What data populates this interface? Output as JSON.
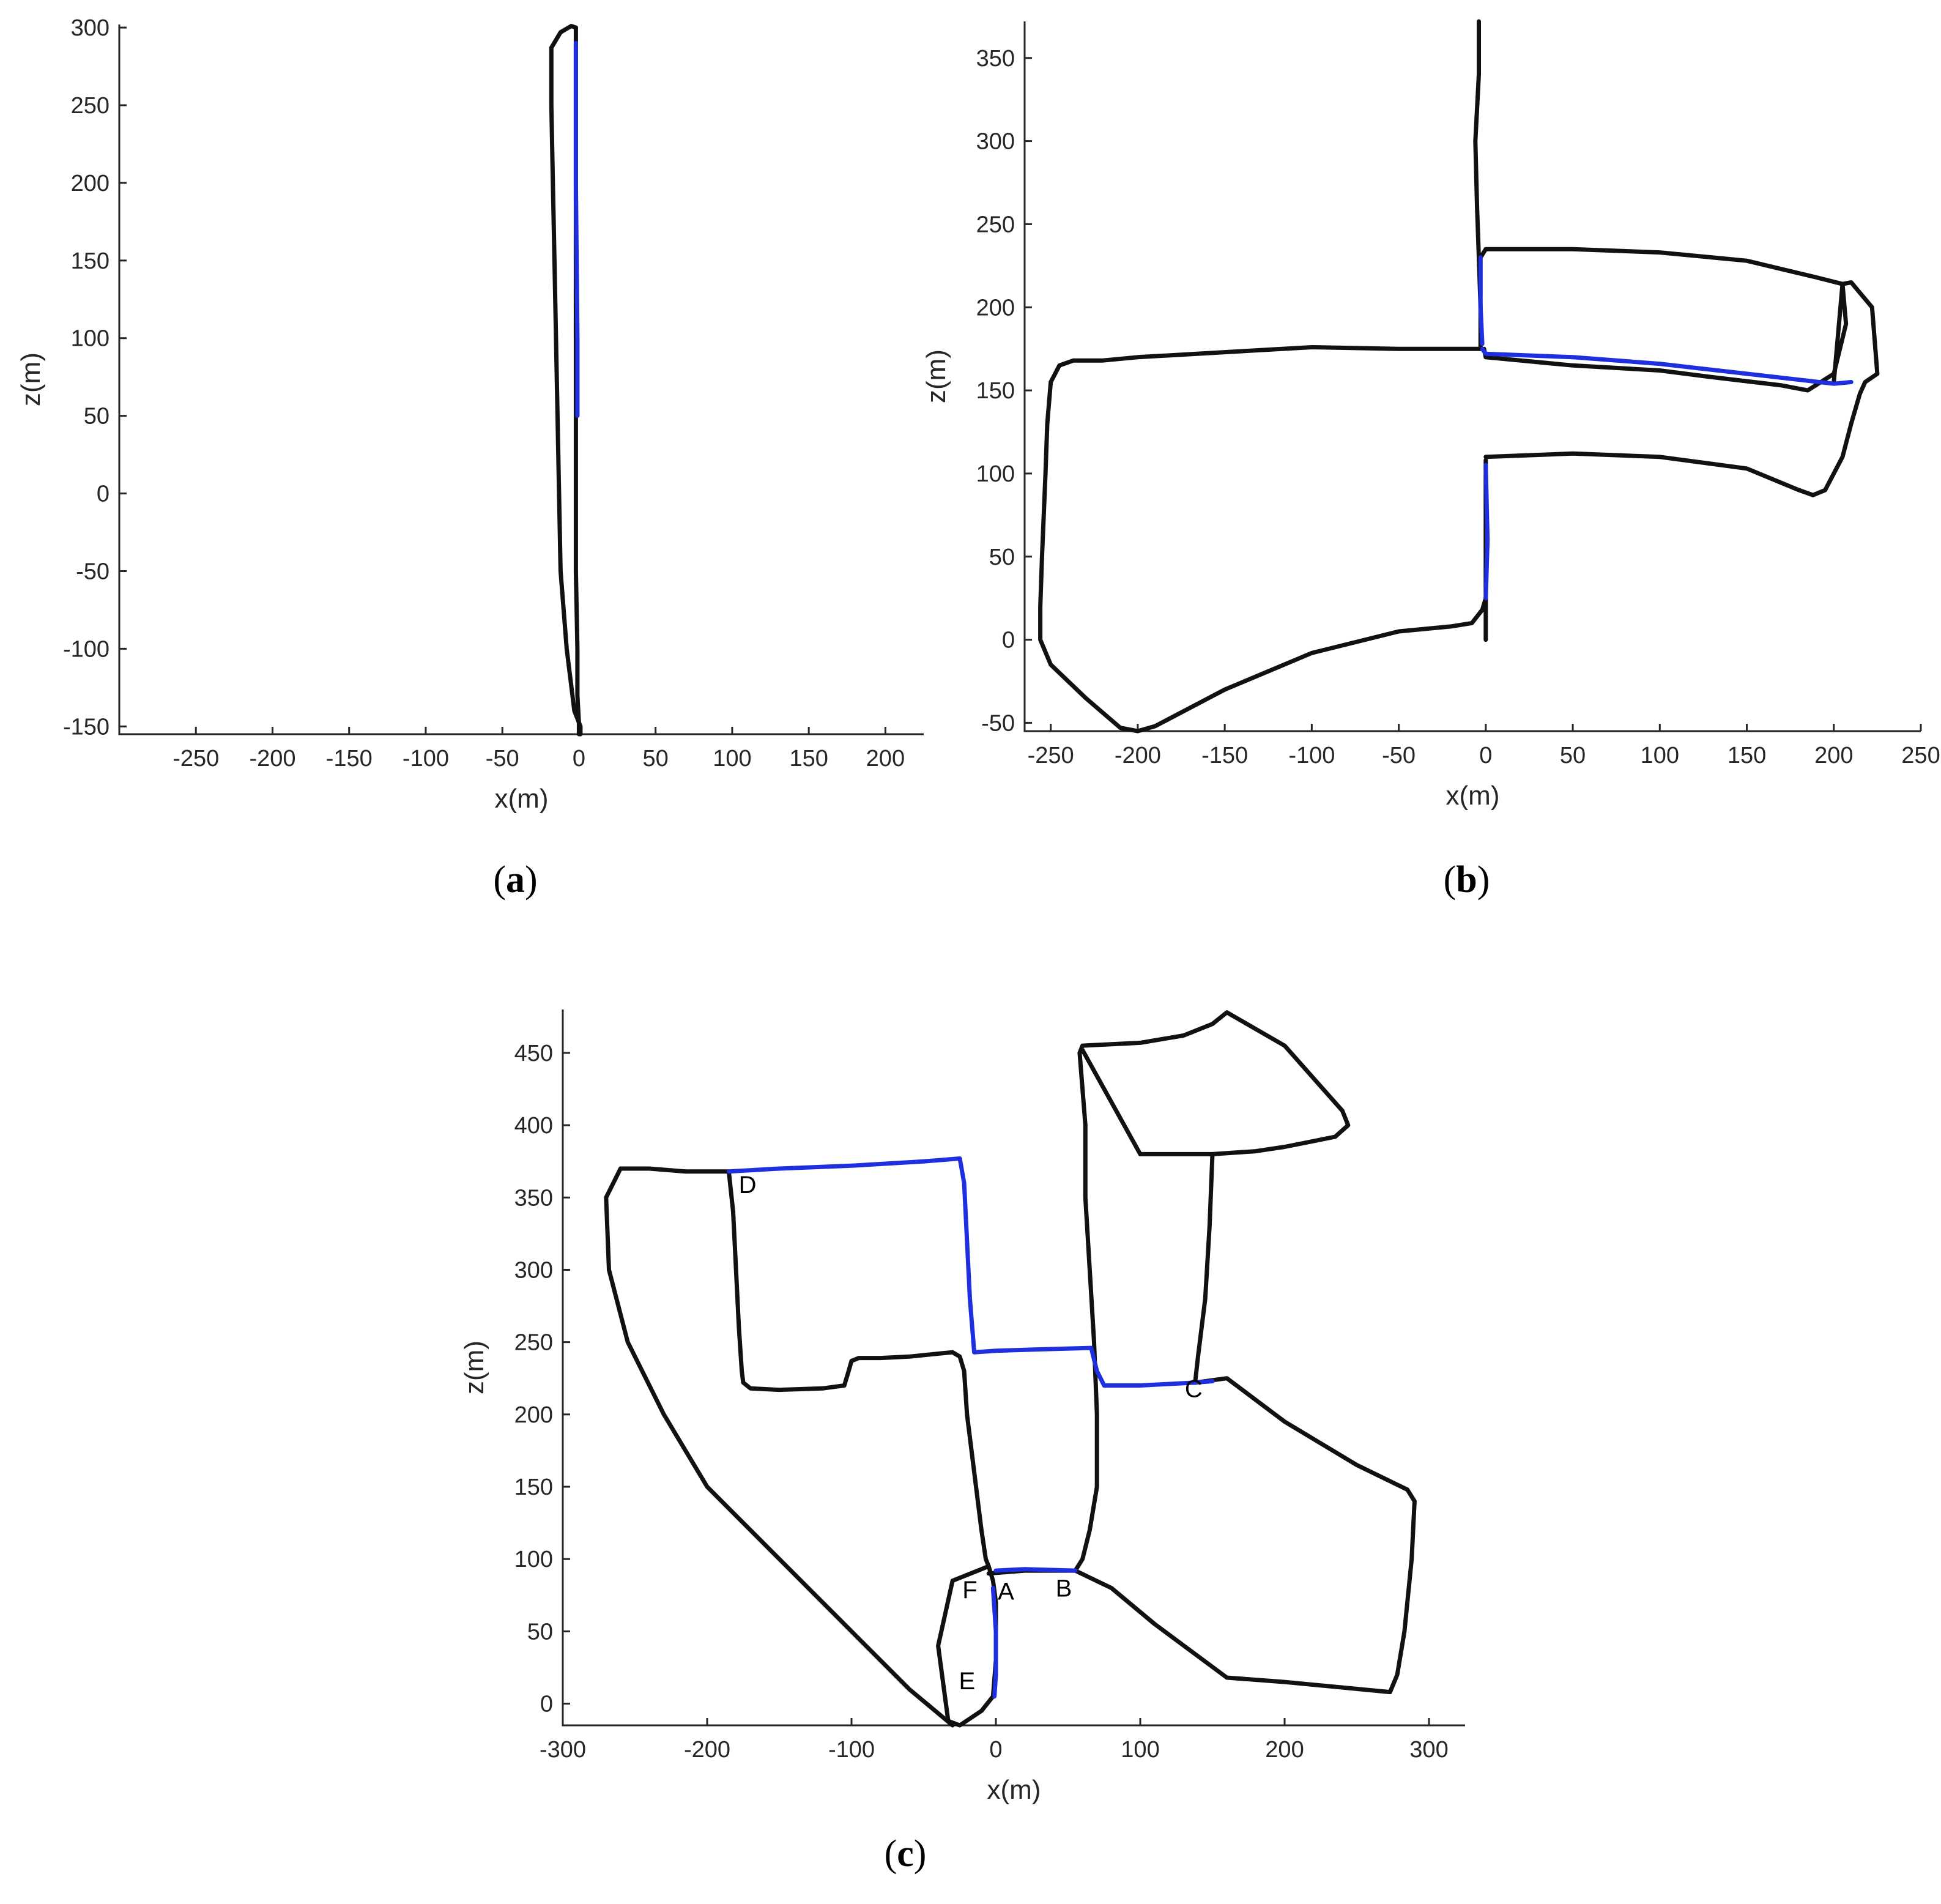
{
  "chart_data": [
    {
      "id": "a",
      "type": "line",
      "panel_label": "a",
      "xlabel": "x(m)",
      "ylabel": "z(m)",
      "xlim": [
        -300,
        225
      ],
      "ylim": [
        -155,
        302
      ],
      "xticks": [
        -250,
        -200,
        -150,
        -100,
        -50,
        0,
        50,
        100,
        150,
        200
      ],
      "yticks": [
        -150,
        -100,
        -50,
        0,
        50,
        100,
        150,
        200,
        250,
        300
      ],
      "series": [
        {
          "color": "#111111",
          "x": [
            -2,
            -5,
            -12,
            -18,
            -18,
            -17,
            -16,
            -15,
            -14,
            -13,
            -12,
            -8,
            -3,
            1,
            1,
            0,
            0,
            -1,
            -1,
            -2
          ],
          "y": [
            300,
            301,
            297,
            287,
            250,
            200,
            150,
            100,
            50,
            0,
            -50,
            -100,
            -140,
            -150,
            -155,
            -155,
            -148,
            -130,
            -100,
            -50
          ]
        },
        {
          "color": "#111111",
          "x": [
            -2,
            -2,
            -2,
            -2
          ],
          "y": [
            -50,
            0,
            50,
            300
          ]
        },
        {
          "color": "#1f2fe0",
          "x": [
            -2,
            -2,
            -1,
            -1
          ],
          "y": [
            290,
            200,
            100,
            50
          ]
        }
      ]
    },
    {
      "id": "b",
      "type": "line",
      "panel_label": "b",
      "xlabel": "x(m)",
      "ylabel": "z(m)",
      "xlim": [
        -265,
        250
      ],
      "ylim": [
        -55,
        372
      ],
      "xticks": [
        -250,
        -200,
        -150,
        -100,
        -50,
        0,
        50,
        100,
        150,
        200,
        250
      ],
      "yticks": [
        -50,
        0,
        50,
        100,
        150,
        200,
        250,
        300,
        350
      ],
      "series": [
        {
          "color": "#111111",
          "x": [
            -4,
            -4,
            -6,
            -5,
            -4,
            -3,
            -3
          ],
          "y": [
            372,
            340,
            300,
            260,
            230,
            200,
            175
          ]
        },
        {
          "color": "#111111",
          "x": [
            -3,
            -50,
            -100,
            -150,
            -200,
            -220,
            -237,
            -245,
            -250,
            -252,
            -253,
            -255,
            -256,
            -256,
            -250,
            -230,
            -210,
            -200,
            -190,
            -150,
            -100,
            -50,
            -20,
            -8,
            -2,
            0,
            0,
            0,
            0,
            0,
            0
          ],
          "y": [
            175,
            175,
            176,
            173,
            170,
            168,
            168,
            165,
            155,
            130,
            100,
            50,
            20,
            0,
            -15,
            -35,
            -53,
            -55,
            -52,
            -30,
            -8,
            5,
            8,
            10,
            18,
            25,
            50,
            100,
            108,
            30,
            0
          ]
        },
        {
          "color": "#111111",
          "x": [
            -3,
            0,
            50,
            100,
            150,
            190,
            205,
            207,
            200,
            185,
            170,
            130,
            100,
            50,
            0,
            -1
          ],
          "y": [
            230,
            235,
            235,
            233,
            228,
            218,
            214,
            190,
            160,
            150,
            153,
            158,
            162,
            165,
            170,
            175
          ]
        },
        {
          "color": "#111111",
          "x": [
            0,
            50,
            100,
            150,
            180,
            188,
            195,
            205,
            210,
            215,
            218,
            225,
            222,
            210,
            205,
            200
          ],
          "y": [
            110,
            112,
            110,
            103,
            90,
            87,
            90,
            110,
            130,
            148,
            155,
            160,
            200,
            215,
            214,
            155
          ]
        },
        {
          "color": "#1f2fe0",
          "x": [
            -2,
            0,
            50,
            100,
            150,
            200,
            210
          ],
          "y": [
            175,
            172,
            170,
            166,
            160,
            154,
            155
          ]
        },
        {
          "color": "#1f2fe0",
          "x": [
            -3,
            -3,
            -2
          ],
          "y": [
            230,
            200,
            178
          ]
        },
        {
          "color": "#1f2fe0",
          "x": [
            0,
            1,
            0
          ],
          "y": [
            105,
            60,
            25
          ]
        }
      ]
    },
    {
      "id": "c",
      "type": "line",
      "panel_label": "c",
      "xlabel": "x(m)",
      "ylabel": "z(m)",
      "xlim": [
        -300,
        325
      ],
      "ylim": [
        -15,
        480
      ],
      "xticks": [
        -300,
        -200,
        -100,
        0,
        100,
        200,
        300
      ],
      "yticks": [
        0,
        50,
        100,
        150,
        200,
        250,
        300,
        350,
        400,
        450
      ],
      "series": [
        {
          "color": "#111111",
          "x": [
            -30,
            -60,
            -100,
            -150,
            -200,
            -230,
            -255,
            -268,
            -270,
            -260,
            -240,
            -215
          ],
          "y": [
            -15,
            10,
            50,
            100,
            150,
            200,
            250,
            300,
            350,
            370,
            370,
            368
          ]
        },
        {
          "color": "#111111",
          "x": [
            -215,
            -185,
            -182,
            -180,
            -178,
            -176,
            -175,
            -170,
            -150,
            -120,
            -105,
            -102,
            -100,
            -95,
            -80,
            -60,
            -40,
            -30,
            -25,
            -22,
            -20,
            -15,
            -10,
            -7,
            -5
          ],
          "y": [
            368,
            368,
            340,
            300,
            260,
            230,
            222,
            218,
            217,
            218,
            220,
            230,
            237,
            239,
            239,
            240,
            242,
            243,
            240,
            230,
            200,
            160,
            120,
            100,
            95
          ]
        },
        {
          "color": "#111111",
          "x": [
            -5,
            -30,
            -40,
            -33,
            -25,
            -10,
            -2,
            0,
            0,
            -2,
            -5
          ],
          "y": [
            95,
            85,
            40,
            -12,
            -15,
            -5,
            5,
            30,
            70,
            85,
            95
          ]
        },
        {
          "color": "#111111",
          "x": [
            -5,
            20,
            55,
            60,
            65,
            70,
            70,
            68,
            65,
            62,
            62,
            58,
            60,
            80,
            100,
            130,
            150,
            160,
            200,
            240,
            244,
            235,
            200,
            180,
            150,
            100,
            60
          ],
          "y": [
            90,
            92,
            92,
            100,
            120,
            150,
            200,
            250,
            300,
            350,
            400,
            450,
            455,
            456,
            457,
            462,
            470,
            478,
            455,
            410,
            400,
            392,
            385,
            382,
            380,
            380,
            452
          ]
        },
        {
          "color": "#111111",
          "x": [
            150,
            148,
            145,
            140,
            138
          ],
          "y": [
            380,
            330,
            280,
            240,
            222
          ]
        },
        {
          "color": "#111111",
          "x": [
            138,
            160,
            200,
            250,
            285,
            290,
            288,
            283,
            278,
            273,
            200,
            160,
            110,
            80,
            55
          ],
          "y": [
            222,
            225,
            195,
            165,
            148,
            140,
            100,
            50,
            20,
            8,
            15,
            18,
            55,
            80,
            92
          ]
        },
        {
          "color": "#1f2fe0",
          "x": [
            -185,
            -150,
            -100,
            -50,
            -25,
            -22,
            -20,
            -18,
            -15,
            0,
            30,
            66,
            70,
            75,
            100,
            138,
            150
          ],
          "y": [
            368,
            370,
            372,
            375,
            377,
            360,
            320,
            280,
            243,
            244,
            245,
            246,
            230,
            220,
            220,
            222,
            223
          ]
        },
        {
          "color": "#1f2fe0",
          "x": [
            0,
            20,
            55
          ],
          "y": [
            92,
            93,
            92
          ]
        },
        {
          "color": "#1f2fe0",
          "x": [
            -2,
            0,
            0,
            -1
          ],
          "y": [
            80,
            50,
            20,
            5
          ]
        }
      ],
      "annotations": [
        {
          "text": "D",
          "x": -172,
          "y": 353
        },
        {
          "text": "C",
          "x": 137,
          "y": 212
        },
        {
          "text": "F",
          "x": -18,
          "y": 73
        },
        {
          "text": "A",
          "x": 7,
          "y": 72
        },
        {
          "text": "B",
          "x": 47,
          "y": 74
        },
        {
          "text": "E",
          "x": -20,
          "y": 10
        }
      ]
    }
  ]
}
